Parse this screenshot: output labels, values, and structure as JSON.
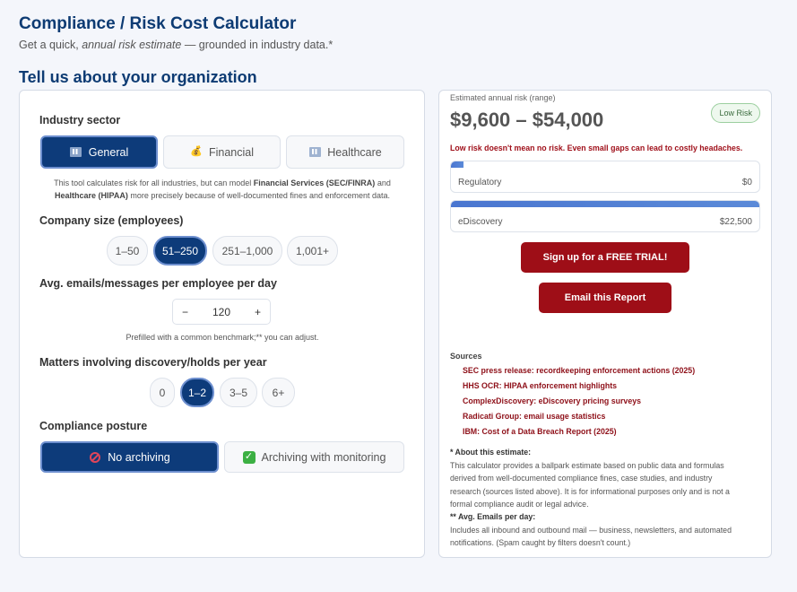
{
  "header": {
    "title": "Compliance / Risk Cost Calculator",
    "subtitle_pre": "Get a quick, ",
    "subtitle_em": "annual risk estimate",
    "subtitle_post": " — grounded in industry data.*"
  },
  "form": {
    "section_title": "Tell us about your organization",
    "industry": {
      "label": "Industry sector",
      "options": [
        "General",
        "Financial",
        "Healthcare"
      ],
      "selected": "General",
      "note_line1": "This tool calculates risk for all industries, but can model ",
      "note_b1": "Financial Services (SEC/FINRA)",
      "note_mid": " and",
      "note_b2": "Healthcare (HIPAA)",
      "note_line2": " more precisely because of well-documented fines and enforcement data."
    },
    "company_size": {
      "label": "Company size (employees)",
      "options": [
        "1–50",
        "51–250",
        "251–1,000",
        "1,001+"
      ],
      "selected": "51–250"
    },
    "emails": {
      "label": "Avg. emails/messages per employee per day",
      "minus": "−",
      "value": "120",
      "plus": "+",
      "note": "Prefilled with a common benchmark;** you can adjust."
    },
    "matters": {
      "label": "Matters involving discovery/holds per year",
      "options": [
        "0",
        "1–2",
        "3–5",
        "6+"
      ],
      "selected": "1–2"
    },
    "posture": {
      "label": "Compliance posture",
      "options": [
        "No archiving",
        "Archiving with monitoring"
      ],
      "selected": "No archiving"
    }
  },
  "results": {
    "range_label": "Estimated annual risk (range)",
    "range": "$9,600 – $54,000",
    "badge": "Low Risk",
    "warning": "Low risk doesn't mean no risk. Even small gaps can lead to costly headaches.",
    "bars": [
      {
        "name": "Regulatory",
        "value": "$0",
        "fill_fraction": 0.04
      },
      {
        "name": "eDiscovery",
        "value": "$22,500",
        "fill_fraction": 1.0
      }
    ],
    "accent": "#4a76d0",
    "cta_trial": "Sign up for a FREE TRIAL!",
    "cta_email": "Email this Report",
    "sources_title": "Sources",
    "sources": [
      "SEC press release: recordkeeping enforcement actions (2025)",
      "HHS OCR: HIPAA enforcement highlights",
      "ComplexDiscovery: eDiscovery pricing surveys",
      "Radicati Group: email usage statistics",
      "IBM: Cost of a Data Breach Report (2025)"
    ],
    "about_title": "* About this estimate:",
    "about_lines": [
      "This calculator provides a ballpark estimate based on public data and formulas",
      "derived from well-documented compliance fines, case studies, and industry",
      "research (sources listed above). It is for informational purposes only and is not a",
      "formal compliance audit or legal advice."
    ],
    "emails_note_title": "** Avg. Emails per day:",
    "emails_note_lines": [
      "Includes all inbound and outbound mail — business, newsletters, and automated",
      "notifications. (Spam caught by filters doesn't count.)"
    ]
  }
}
